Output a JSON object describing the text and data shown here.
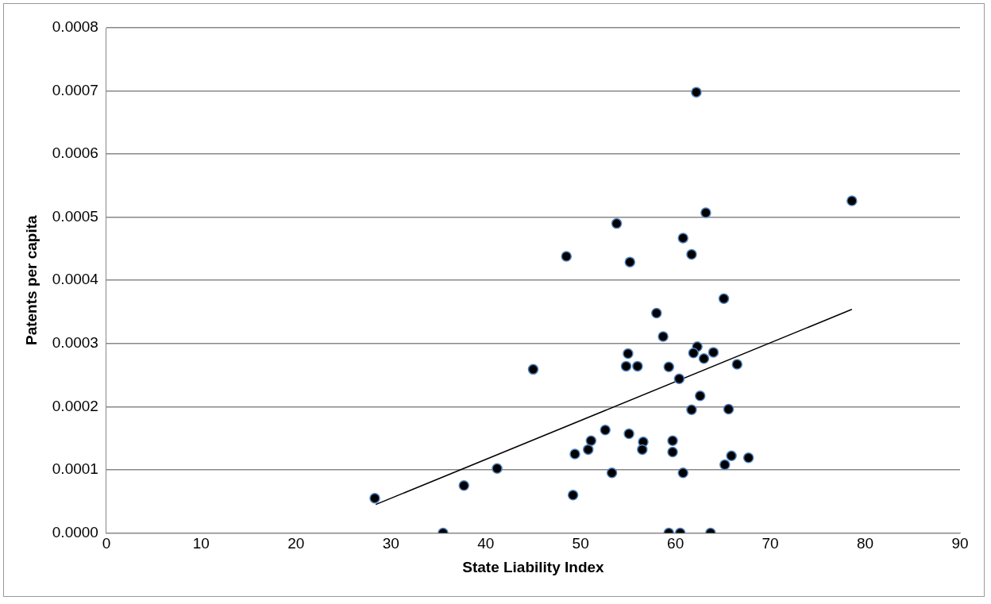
{
  "chart_data": {
    "type": "scatter",
    "xlabel": "State Liability Index",
    "ylabel": "Patents per capita",
    "xlim": [
      0,
      90
    ],
    "xticks": [
      0,
      10,
      20,
      30,
      40,
      50,
      60,
      70,
      80,
      90
    ],
    "ylim": [
      0,
      0.0008
    ],
    "yticks": [
      {
        "value": 0,
        "label": "0.0000"
      },
      {
        "value": 0.0001,
        "label": "0.0001"
      },
      {
        "value": 0.0002,
        "label": "0.0002"
      },
      {
        "value": 0.0003,
        "label": "0.0003"
      },
      {
        "value": 0.0004,
        "label": "0.0004"
      },
      {
        "value": 0.0005,
        "label": "0.0005"
      },
      {
        "value": 0.0006,
        "label": "0.0006"
      },
      {
        "value": 0.0007,
        "label": "0.0007"
      },
      {
        "value": 0.0008,
        "label": "0.0008"
      }
    ],
    "grid": "y",
    "legend": false,
    "marker": "circle",
    "series": [
      {
        "color": "#000000",
        "x": [
          28.3,
          35.5,
          37.7,
          41.2,
          45.0,
          53.8,
          62.2,
          63.2,
          60.8,
          48.5,
          55.2,
          61.7,
          65.1,
          58.0,
          58.7,
          55.0,
          54.8,
          56.0,
          59.3,
          60.4,
          62.3,
          61.9,
          63.0,
          64.0,
          66.5,
          62.6,
          61.7,
          65.6,
          52.6,
          51.1,
          50.8,
          49.4,
          55.1,
          56.6,
          56.5,
          59.7,
          59.7,
          65.9,
          65.2,
          67.7,
          53.3,
          60.8,
          49.2,
          59.3,
          60.5,
          63.7,
          78.6
        ],
        "values": [
          5.5e-05,
          0,
          7.5e-05,
          0.000102,
          0.000259,
          0.00049,
          0.000698,
          0.000507,
          0.000467,
          0.000438,
          0.000429,
          0.000441,
          0.000371,
          0.000348,
          0.000311,
          0.000284,
          0.000264,
          0.000264,
          0.000263,
          0.000244,
          0.000295,
          0.000285,
          0.000276,
          0.000286,
          0.000267,
          0.000217,
          0.000195,
          0.000196,
          0.000163,
          0.000146,
          0.000132,
          0.000125,
          0.000157,
          0.000144,
          0.000132,
          0.000146,
          0.000128,
          0.000122,
          0.000108,
          0.000119,
          9.5e-05,
          9.5e-05,
          6e-05,
          0,
          0,
          0,
          0.000526
        ]
      },
      {
        "type": "line",
        "color": "#000000",
        "marker": "none",
        "x": [
          28.4,
          78.6
        ],
        "values": [
          4.5e-05,
          0.000354
        ]
      }
    ]
  }
}
